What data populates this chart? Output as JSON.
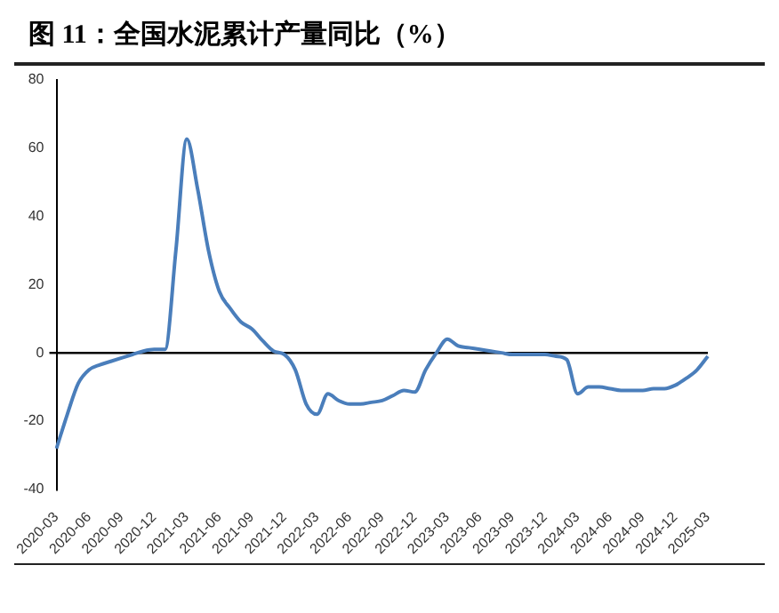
{
  "chart_data": {
    "type": "line",
    "title": "图 11：全国水泥累计产量同比（%）",
    "categories": [
      "2020-03",
      null,
      null,
      "2020-06",
      null,
      null,
      "2020-09",
      null,
      null,
      "2020-12",
      null,
      null,
      "2021-03",
      null,
      null,
      "2021-06",
      null,
      null,
      "2021-09",
      null,
      null,
      "2021-12",
      null,
      null,
      "2022-03",
      null,
      null,
      "2022-06",
      null,
      null,
      "2022-09",
      null,
      null,
      "2022-12",
      null,
      null,
      "2023-03",
      null,
      null,
      "2023-06",
      null,
      null,
      "2023-09",
      null,
      null,
      "2023-12",
      null,
      null,
      "2024-03",
      null,
      null,
      "2024-06",
      null,
      null,
      "2024-09",
      null,
      null,
      "2024-12",
      null,
      null,
      "2025-03"
    ],
    "series": [
      {
        "color": "#4a7ebb",
        "values": [
          -28,
          -18,
          -9,
          -5,
          -3.5,
          -2.5,
          -1.5,
          -0.5,
          0.5,
          1,
          1,
          30,
          62.6,
          48,
          30,
          18,
          13,
          9,
          7,
          3.5,
          0.5,
          -0.5,
          -5,
          -15,
          -18,
          -12,
          -14,
          -15,
          -15,
          -14.5,
          -14,
          -12.5,
          -11,
          -11.5,
          -5,
          0,
          4,
          2,
          1.5,
          1,
          0.5,
          0,
          -0.5,
          -0.5,
          -0.5,
          -0.5,
          -1,
          -2,
          -12,
          -10,
          -10,
          -10.5,
          -11,
          -11,
          -11,
          -10.5,
          -10.5,
          -9.5,
          -7.5,
          -5,
          -1
        ]
      }
    ],
    "ylim": [
      -40,
      80
    ],
    "yticks": [
      -40,
      -20,
      0,
      20,
      40,
      60,
      80
    ],
    "legend": false,
    "marker": "none",
    "line_style": "solid"
  }
}
